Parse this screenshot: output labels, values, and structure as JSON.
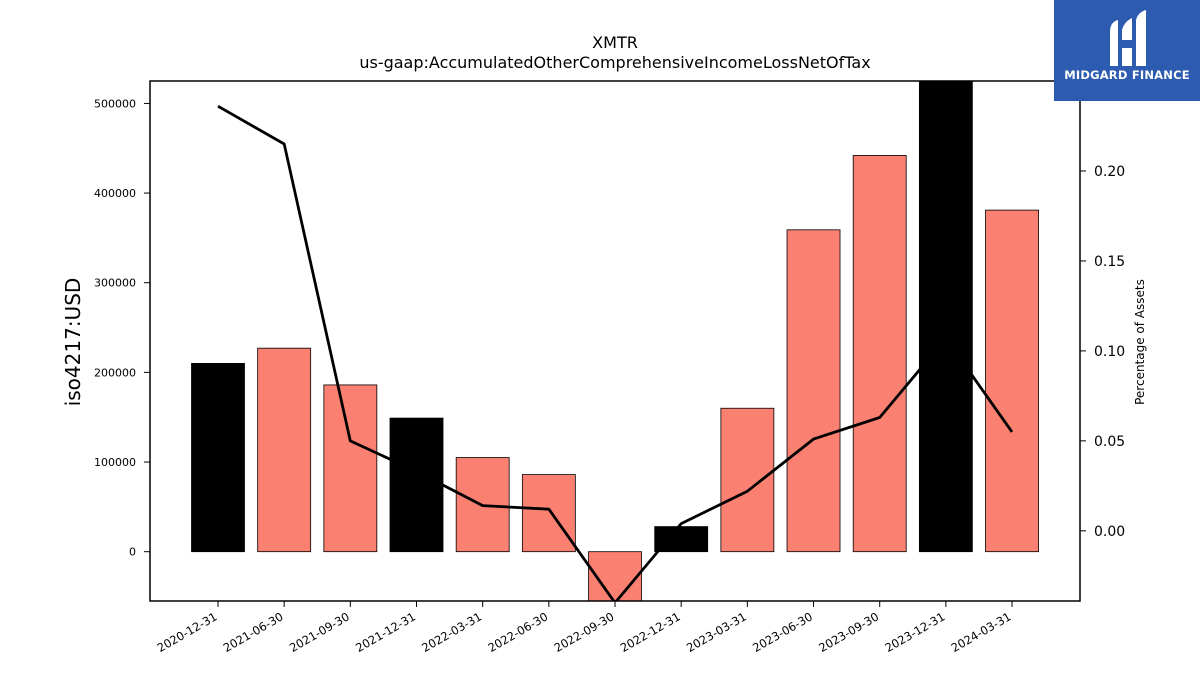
{
  "chart_data": {
    "type": "bar",
    "title": "XMTR",
    "subtitle": "us-gaap:AccumulatedOtherComprehensiveIncomeLossNetOfTax",
    "ylabel": "iso4217:USD",
    "y2label": "Percentage of Assets",
    "categories": [
      "2020-12-31",
      "2021-06-30",
      "2021-09-30",
      "2021-12-31",
      "2022-03-31",
      "2022-06-30",
      "2022-09-30",
      "2022-12-31",
      "2023-03-31",
      "2023-06-30",
      "2023-09-30",
      "2023-12-31",
      "2024-03-31"
    ],
    "values": [
      210000,
      227000,
      186000,
      149000,
      105000,
      86000,
      -55000,
      28000,
      160000,
      359000,
      442000,
      525000,
      381000
    ],
    "bar_colors": [
      "#000000",
      "#fa8072",
      "#fa8072",
      "#000000",
      "#fa8072",
      "#fa8072",
      "#fa8072",
      "#000000",
      "#fa8072",
      "#fa8072",
      "#fa8072",
      "#000000",
      "#fa8072"
    ],
    "line_values": [
      0.236,
      0.215,
      0.05,
      0.033,
      0.014,
      0.012,
      -0.04,
      0.004,
      0.022,
      0.051,
      0.063,
      0.107,
      0.055
    ],
    "ylim": [
      -55000,
      525000
    ],
    "y2lim": [
      -0.039,
      0.25
    ],
    "yticks": [
      0,
      100000,
      200000,
      300000,
      400000,
      500000
    ],
    "y2ticks": [
      "0.00",
      "0.05",
      "0.10",
      "0.15",
      "0.20"
    ],
    "y2tick_values": [
      0,
      0.05,
      0.1,
      0.15,
      0.2
    ],
    "grid": false,
    "line_color": "#000000"
  },
  "logo": {
    "text": "MIDGARD FINANCE",
    "bg_color": "#2d5bb0"
  }
}
